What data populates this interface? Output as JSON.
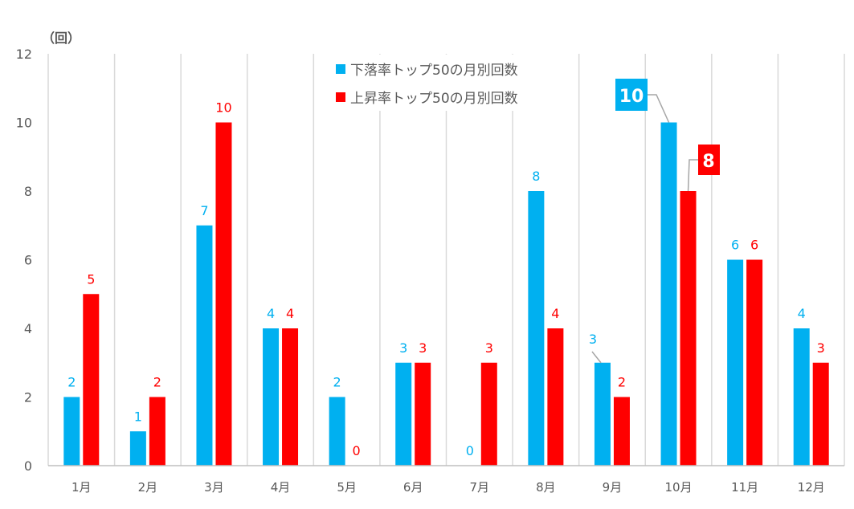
{
  "chart_data": {
    "type": "bar",
    "ylabel": "（回）",
    "ylim": [
      0,
      12
    ],
    "yticks": [
      "0",
      "2",
      "4",
      "6",
      "8",
      "10",
      "12"
    ],
    "categories": [
      "1月",
      "2月",
      "3月",
      "4月",
      "5月",
      "6月",
      "7月",
      "8月",
      "9月",
      "10月",
      "11月",
      "12月"
    ],
    "series": [
      {
        "name": "下落率トップ50の月別回数",
        "color": "#00B0F0",
        "values": [
          2,
          1,
          7,
          4,
          2,
          3,
          0,
          8,
          3,
          10,
          6,
          4
        ]
      },
      {
        "name": "上昇率トップ50の月別回数",
        "color": "#FF0000",
        "values": [
          5,
          2,
          10,
          4,
          0,
          3,
          3,
          4,
          2,
          8,
          6,
          3
        ]
      }
    ],
    "legend_position": "top-center",
    "grid": "vertical category separators",
    "highlighted_labels": [
      "10月"
    ]
  }
}
